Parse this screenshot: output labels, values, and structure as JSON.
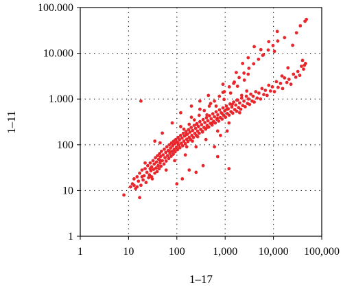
{
  "chart_data": {
    "type": "scatter",
    "title": "",
    "xlabel": "1–17",
    "ylabel": "1–11",
    "xscale": "log",
    "yscale": "log",
    "xlim": [
      1,
      100000
    ],
    "ylim": [
      1,
      100000
    ],
    "grid": true,
    "grid_style": "dotted",
    "marker_color": "#e8262b",
    "x_ticks": [
      {
        "value": 1,
        "label": "1"
      },
      {
        "value": 10,
        "label": "10"
      },
      {
        "value": 100,
        "label": "100"
      },
      {
        "value": 1000,
        "label": "1,000"
      },
      {
        "value": 10000,
        "label": "10,000"
      },
      {
        "value": 100000,
        "label": "100,000"
      }
    ],
    "y_ticks": [
      {
        "value": 1,
        "label": "1"
      },
      {
        "value": 10,
        "label": "10"
      },
      {
        "value": 100,
        "label": "100"
      },
      {
        "value": 1000,
        "label": "1.000"
      },
      {
        "value": 10000,
        "label": "10.000"
      },
      {
        "value": 100000,
        "label": "100.000"
      }
    ],
    "series": [
      {
        "points": [
          [
            8,
            8
          ],
          [
            11,
            12
          ],
          [
            12,
            14
          ],
          [
            13,
            18
          ],
          [
            14,
            11
          ],
          [
            15,
            20
          ],
          [
            16,
            16
          ],
          [
            17,
            24
          ],
          [
            17,
            7
          ],
          [
            18,
            13
          ],
          [
            19,
            28
          ],
          [
            20,
            17
          ],
          [
            21,
            21
          ],
          [
            22,
            30
          ],
          [
            23,
            15
          ],
          [
            24,
            25
          ],
          [
            25,
            35
          ],
          [
            26,
            19
          ],
          [
            27,
            22
          ],
          [
            28,
            40
          ],
          [
            29,
            27
          ],
          [
            30,
            33
          ],
          [
            31,
            18
          ],
          [
            32,
            45
          ],
          [
            33,
            29
          ],
          [
            34,
            38
          ],
          [
            35,
            24
          ],
          [
            36,
            52
          ],
          [
            37,
            31
          ],
          [
            38,
            42
          ],
          [
            39,
            26
          ],
          [
            40,
            58
          ],
          [
            41,
            35
          ],
          [
            42,
            48
          ],
          [
            43,
            30
          ],
          [
            44,
            64
          ],
          [
            45,
            40
          ],
          [
            46,
            55
          ],
          [
            47,
            34
          ],
          [
            48,
            72
          ],
          [
            50,
            45
          ],
          [
            52,
            60
          ],
          [
            54,
            38
          ],
          [
            55,
            80
          ],
          [
            57,
            52
          ],
          [
            59,
            68
          ],
          [
            60,
            44
          ],
          [
            62,
            90
          ],
          [
            64,
            58
          ],
          [
            66,
            75
          ],
          [
            68,
            50
          ],
          [
            70,
            100
          ],
          [
            72,
            65
          ],
          [
            74,
            85
          ],
          [
            76,
            56
          ],
          [
            78,
            110
          ],
          [
            80,
            72
          ],
          [
            82,
            95
          ],
          [
            84,
            62
          ],
          [
            86,
            120
          ],
          [
            88,
            80
          ],
          [
            90,
            105
          ],
          [
            92,
            70
          ],
          [
            95,
            130
          ],
          [
            98,
            88
          ],
          [
            100,
            115
          ],
          [
            103,
            78
          ],
          [
            106,
            145
          ],
          [
            110,
            98
          ],
          [
            113,
            128
          ],
          [
            116,
            86
          ],
          [
            120,
            160
          ],
          [
            124,
            108
          ],
          [
            128,
            140
          ],
          [
            132,
            95
          ],
          [
            136,
            178
          ],
          [
            140,
            120
          ],
          [
            145,
            155
          ],
          [
            150,
            105
          ],
          [
            155,
            195
          ],
          [
            160,
            132
          ],
          [
            165,
            170
          ],
          [
            170,
            118
          ],
          [
            175,
            215
          ],
          [
            180,
            145
          ],
          [
            186,
            188
          ],
          [
            192,
            130
          ],
          [
            198,
            240
          ],
          [
            205,
            160
          ],
          [
            212,
            205
          ],
          [
            220,
            145
          ],
          [
            228,
            265
          ],
          [
            236,
            178
          ],
          [
            244,
            228
          ],
          [
            252,
            160
          ],
          [
            260,
            290
          ],
          [
            270,
            198
          ],
          [
            280,
            250
          ],
          [
            290,
            178
          ],
          [
            300,
            320
          ],
          [
            312,
            218
          ],
          [
            325,
            275
          ],
          [
            338,
            198
          ],
          [
            350,
            355
          ],
          [
            365,
            240
          ],
          [
            380,
            305
          ],
          [
            395,
            220
          ],
          [
            410,
            390
          ],
          [
            425,
            265
          ],
          [
            440,
            335
          ],
          [
            458,
            245
          ],
          [
            475,
            430
          ],
          [
            495,
            295
          ],
          [
            515,
            370
          ],
          [
            535,
            270
          ],
          [
            555,
            475
          ],
          [
            578,
            325
          ],
          [
            600,
            410
          ],
          [
            625,
            300
          ],
          [
            650,
            525
          ],
          [
            676,
            360
          ],
          [
            705,
            450
          ],
          [
            735,
            330
          ],
          [
            765,
            580
          ],
          [
            795,
            395
          ],
          [
            830,
            500
          ],
          [
            865,
            365
          ],
          [
            900,
            640
          ],
          [
            940,
            435
          ],
          [
            980,
            550
          ],
          [
            1020,
            400
          ],
          [
            1060,
            700
          ],
          [
            1110,
            480
          ],
          [
            1160,
            610
          ],
          [
            1210,
            445
          ],
          [
            1260,
            780
          ],
          [
            1320,
            530
          ],
          [
            1380,
            670
          ],
          [
            1440,
            490
          ],
          [
            1500,
            860
          ],
          [
            1580,
            590
          ],
          [
            1660,
            740
          ],
          [
            1740,
            540
          ],
          [
            1820,
            950
          ],
          [
            1900,
            650
          ],
          [
            2000,
            820
          ],
          [
            2100,
            600
          ],
          [
            2200,
            1050
          ],
          [
            2320,
            720
          ],
          [
            2450,
            900
          ],
          [
            2600,
            680
          ],
          [
            2750,
            1150
          ],
          [
            2900,
            800
          ],
          [
            3050,
            1000
          ],
          [
            3200,
            760
          ],
          [
            3400,
            1280
          ],
          [
            3600,
            900
          ],
          [
            3800,
            1150
          ],
          [
            4000,
            860
          ],
          [
            4300,
            1450
          ],
          [
            4600,
            1050
          ],
          [
            5000,
            1350
          ],
          [
            5400,
            1000
          ],
          [
            5800,
            1700
          ],
          [
            6300,
            1250
          ],
          [
            6800,
            1550
          ],
          [
            7400,
            1200
          ],
          [
            8000,
            2000
          ],
          [
            8700,
            1500
          ],
          [
            9500,
            1850
          ],
          [
            10500,
            1450
          ],
          [
            11500,
            2400
          ],
          [
            12500,
            1800
          ],
          [
            14000,
            2200
          ],
          [
            15500,
            1700
          ],
          [
            17000,
            2900
          ],
          [
            19000,
            2300
          ],
          [
            21000,
            2700
          ],
          [
            23000,
            2100
          ],
          [
            26000,
            3500
          ],
          [
            29000,
            3000
          ],
          [
            32000,
            4000
          ],
          [
            35000,
            3300
          ],
          [
            38000,
            5200
          ],
          [
            42000,
            4500
          ],
          [
            46000,
            6000
          ],
          [
            15000,
            3200
          ],
          [
            20000,
            4800
          ],
          [
            44000,
            5500
          ],
          [
            40000,
            7000
          ],
          [
            18,
            900
          ],
          [
            15,
            12
          ],
          [
            22,
            40
          ],
          [
            30,
            20
          ],
          [
            45,
            110
          ],
          [
            60,
            28
          ],
          [
            90,
            45
          ],
          [
            120,
            250
          ],
          [
            150,
            60
          ],
          [
            200,
            400
          ],
          [
            250,
            90
          ],
          [
            300,
            600
          ],
          [
            400,
            130
          ],
          [
            500,
            800
          ],
          [
            700,
            200
          ],
          [
            900,
            1400
          ],
          [
            1200,
            300
          ],
          [
            1500,
            2200
          ],
          [
            2000,
            500
          ],
          [
            3000,
            3500
          ],
          [
            800,
            160
          ],
          [
            1100,
            200
          ],
          [
            600,
            90
          ],
          [
            700,
            55
          ],
          [
            350,
            35
          ],
          [
            250,
            25
          ],
          [
            180,
            28
          ],
          [
            130,
            18
          ],
          [
            100,
            14
          ],
          [
            1200,
            30
          ],
          [
            2300,
            6000
          ],
          [
            1700,
            3800
          ],
          [
            900,
            2100
          ],
          [
            450,
            1200
          ],
          [
            300,
            900
          ],
          [
            200,
            700
          ],
          [
            120,
            500
          ],
          [
            80,
            300
          ],
          [
            50,
            180
          ],
          [
            35,
            120
          ],
          [
            5500,
            12000
          ],
          [
            8000,
            18000
          ],
          [
            12000,
            30000
          ],
          [
            17000,
            22000
          ],
          [
            25000,
            15000
          ],
          [
            30000,
            28000
          ],
          [
            36000,
            40000
          ],
          [
            45000,
            50000
          ],
          [
            48000,
            55000
          ],
          [
            10500,
            11000
          ],
          [
            4000,
            14000
          ],
          [
            6000,
            9000
          ],
          [
            3000,
            8000
          ],
          [
            2500,
            2600
          ],
          [
            1800,
            1900
          ],
          [
            1300,
            1350
          ],
          [
            950,
            980
          ],
          [
            650,
            700
          ],
          [
            420,
            450
          ],
          [
            260,
            280
          ],
          [
            160,
            170
          ],
          [
            105,
            110
          ],
          [
            70,
            72
          ],
          [
            45,
            46
          ],
          [
            28,
            30
          ],
          [
            19,
            20
          ],
          [
            13,
            13
          ],
          [
            160,
            90
          ],
          [
            210,
            120
          ],
          [
            270,
            150
          ],
          [
            340,
            190
          ],
          [
            430,
            240
          ],
          [
            540,
            300
          ],
          [
            690,
            380
          ],
          [
            870,
            480
          ],
          [
            1100,
            600
          ],
          [
            1400,
            760
          ],
          [
            1750,
            950
          ],
          [
            2200,
            1200
          ],
          [
            2800,
            1500
          ],
          [
            140,
            220
          ],
          [
            180,
            280
          ],
          [
            230,
            350
          ],
          [
            290,
            440
          ],
          [
            370,
            560
          ],
          [
            470,
            700
          ],
          [
            600,
            900
          ],
          [
            760,
            1150
          ],
          [
            960,
            1450
          ],
          [
            1220,
            1850
          ],
          [
            1550,
            2350
          ],
          [
            1950,
            2950
          ],
          [
            2450,
            3700
          ],
          [
            3100,
            4700
          ],
          [
            3900,
            5900
          ],
          [
            4900,
            7400
          ],
          [
            6200,
            9300
          ],
          [
            7800,
            11800
          ],
          [
            9800,
            14800
          ],
          [
            12300,
            18600
          ]
        ]
      }
    ]
  }
}
